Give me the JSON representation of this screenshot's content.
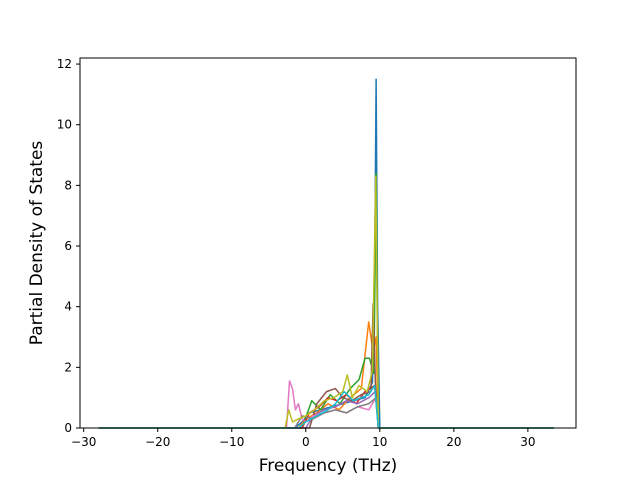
{
  "chart_data": {
    "type": "line",
    "title": "",
    "xlabel": "Frequency (THz)",
    "ylabel": "Partial Density of States",
    "xlim": [
      -30.5,
      36.5
    ],
    "ylim": [
      0,
      12.2
    ],
    "xticks": [
      -30,
      -20,
      -10,
      0,
      10,
      20,
      30
    ],
    "yticks": [
      0,
      2,
      4,
      6,
      8,
      10,
      12
    ],
    "xtick_labels": [
      "−30",
      "−20",
      "−10",
      "0",
      "10",
      "20",
      "30"
    ],
    "ytick_labels": [
      "0",
      "2",
      "4",
      "6",
      "8",
      "10",
      "12"
    ],
    "grid": false,
    "legend": "none",
    "series": [
      {
        "color": "#1f77b4",
        "x": [
          -28,
          -1.5,
          -0.5,
          0.5,
          2,
          3.5,
          5,
          6.5,
          8,
          9,
          9.3,
          9.5,
          9.7,
          10,
          33.5
        ],
        "y": [
          0,
          0,
          0.2,
          0.5,
          0.6,
          0.7,
          0.8,
          0.9,
          1.0,
          1.5,
          5.0,
          11.5,
          4.0,
          0,
          0
        ]
      },
      {
        "color": "#ff7f0e",
        "x": [
          -28,
          -1,
          0,
          1.5,
          3,
          4.5,
          6,
          7.5,
          8.5,
          9.1,
          9.5,
          9.8,
          33.5
        ],
        "y": [
          0,
          0,
          0.3,
          0.5,
          0.8,
          0.6,
          1.0,
          1.3,
          3.5,
          2.5,
          3.0,
          0,
          0
        ]
      },
      {
        "color": "#2ca02c",
        "x": [
          -28,
          -0.5,
          0.8,
          2,
          3.3,
          4.6,
          6,
          7.2,
          8,
          8.6,
          9.2,
          9.5,
          9.8,
          33.5
        ],
        "y": [
          0,
          0,
          0.9,
          0.6,
          1.1,
          0.8,
          1.3,
          1.6,
          2.3,
          2.3,
          1.8,
          8.4,
          0,
          0
        ]
      },
      {
        "color": "#d62728",
        "x": [
          -28,
          -0.5,
          0.5,
          1.8,
          3,
          4.2,
          5.5,
          6.8,
          8,
          9.3,
          9.8,
          33.5
        ],
        "y": [
          0,
          0,
          0.5,
          0.7,
          1.0,
          0.9,
          1.1,
          0.8,
          1.2,
          1.4,
          0,
          0
        ]
      },
      {
        "color": "#9467bd",
        "x": [
          -28,
          0,
          1,
          2.5,
          4,
          5.5,
          7,
          8.5,
          9.4,
          9.8,
          33.5
        ],
        "y": [
          0,
          0,
          0.4,
          0.6,
          0.7,
          0.9,
          0.8,
          1.0,
          1.2,
          0,
          0
        ]
      },
      {
        "color": "#8c564b",
        "x": [
          -28,
          0.5,
          1.5,
          2.8,
          4,
          5,
          6.2,
          7.5,
          8.8,
          9.1,
          9.4,
          9.8,
          33.5
        ],
        "y": [
          0,
          0,
          0.8,
          1.2,
          1.3,
          1.0,
          0.9,
          1.1,
          1.2,
          4.1,
          1.5,
          0,
          0
        ]
      },
      {
        "color": "#e377c2",
        "x": [
          -28,
          -2.6,
          -2.2,
          -1.8,
          -1.4,
          -1.0,
          -0.5,
          0,
          1,
          2.5,
          4,
          5.5,
          7,
          8.5,
          9.5,
          9.8,
          33.5
        ],
        "y": [
          0,
          0,
          1.55,
          1.3,
          0.6,
          0.8,
          0.3,
          0.2,
          0.4,
          0.5,
          0.6,
          0.5,
          0.7,
          0.6,
          1.0,
          0,
          0
        ]
      },
      {
        "color": "#7f7f7f",
        "x": [
          -28,
          -1.5,
          -0.5,
          1,
          2.5,
          4,
          5.5,
          7,
          8.5,
          9.5,
          9.8,
          33.5
        ],
        "y": [
          0,
          0,
          0.4,
          0.3,
          0.5,
          0.6,
          0.5,
          0.7,
          0.8,
          1.0,
          0,
          0
        ]
      },
      {
        "color": "#bcbd22",
        "x": [
          -28,
          -2.8,
          -2.3,
          -1.8,
          -1,
          0,
          1.2,
          2.5,
          3.8,
          5,
          5.6,
          6.3,
          7.2,
          8.3,
          9,
          9.45,
          9.8,
          33.5
        ],
        "y": [
          0,
          0,
          0.6,
          0.2,
          0.3,
          0.4,
          0.6,
          0.9,
          1.0,
          1.2,
          1.75,
          1.0,
          1.4,
          1.2,
          1.9,
          8.3,
          0,
          0
        ]
      },
      {
        "color": "#17becf",
        "x": [
          -28,
          -1,
          0,
          1.5,
          3,
          4,
          5.2,
          6.4,
          7.5,
          8.5,
          9.3,
          9.8,
          33.5
        ],
        "y": [
          0,
          0,
          0.2,
          0.4,
          0.6,
          0.8,
          1.2,
          0.9,
          1.0,
          1.1,
          1.4,
          0,
          0
        ]
      }
    ]
  }
}
